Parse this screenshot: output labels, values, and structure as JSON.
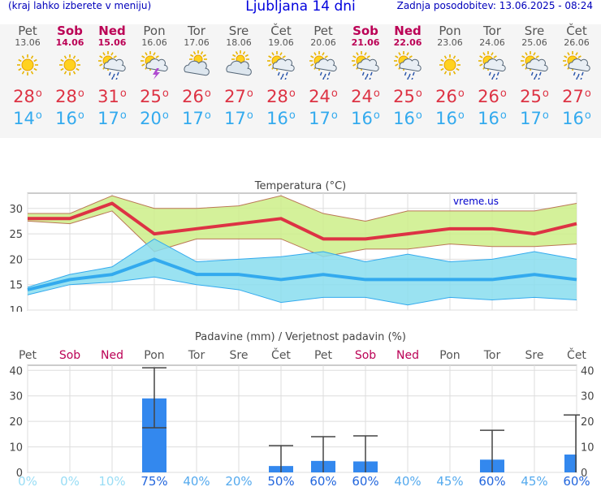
{
  "header": {
    "menu_hint": "(kraj lahko izberete v meniju)",
    "title": "Ljubljana 14 dni",
    "updated": "Zadnja posodobitev: 13.06.2025 - 08:24"
  },
  "days": [
    {
      "name": "Pet",
      "date": "13.06",
      "weekend": false,
      "icon": "sun-icon",
      "max": "28",
      "min": "14"
    },
    {
      "name": "Sob",
      "date": "14.06",
      "weekend": true,
      "icon": "sun-icon",
      "max": "28",
      "min": "16"
    },
    {
      "name": "Ned",
      "date": "15.06",
      "weekend": true,
      "icon": "sun-cloud-rain-icon",
      "max": "31",
      "min": "17"
    },
    {
      "name": "Pon",
      "date": "16.06",
      "weekend": false,
      "icon": "thunderstorm-icon",
      "max": "25",
      "min": "20"
    },
    {
      "name": "Tor",
      "date": "17.06",
      "weekend": false,
      "icon": "partly-cloudy-icon",
      "max": "26",
      "min": "17"
    },
    {
      "name": "Sre",
      "date": "18.06",
      "weekend": false,
      "icon": "partly-cloudy-icon",
      "max": "27",
      "min": "17"
    },
    {
      "name": "Čet",
      "date": "19.06",
      "weekend": false,
      "icon": "sun-cloud-rain-icon",
      "max": "28",
      "min": "16"
    },
    {
      "name": "Pet",
      "date": "20.06",
      "weekend": false,
      "icon": "sun-cloud-rain-icon",
      "max": "24",
      "min": "17"
    },
    {
      "name": "Sob",
      "date": "21.06",
      "weekend": true,
      "icon": "sun-cloud-rain-icon",
      "max": "24",
      "min": "16"
    },
    {
      "name": "Ned",
      "date": "22.06",
      "weekend": true,
      "icon": "sun-cloud-rain-icon",
      "max": "25",
      "min": "16"
    },
    {
      "name": "Pon",
      "date": "23.06",
      "weekend": false,
      "icon": "sun-icon",
      "max": "26",
      "min": "16"
    },
    {
      "name": "Tor",
      "date": "24.06",
      "weekend": false,
      "icon": "sun-cloud-rain-icon",
      "max": "26",
      "min": "16"
    },
    {
      "name": "Sre",
      "date": "25.06",
      "weekend": false,
      "icon": "sun-cloud-rain-icon",
      "max": "25",
      "min": "17"
    },
    {
      "name": "Čet",
      "date": "26.06",
      "weekend": false,
      "icon": "sun-cloud-rain-icon",
      "max": "27",
      "min": "16"
    }
  ],
  "colors": {
    "max": "#dd3344",
    "min": "#33aaee",
    "weekend": "#bb0055",
    "band_max": "#ccee88",
    "band_min": "#88ddee",
    "bar": "#3388ee"
  },
  "chart_data": [
    {
      "type": "line",
      "title": "Temperatura (°C)",
      "watermark": "vreme.us",
      "ylim": [
        10,
        33
      ],
      "yticks": [
        10,
        15,
        20,
        25,
        30
      ],
      "grid": true,
      "series": [
        {
          "role": "max",
          "values": [
            28,
            28,
            31,
            25,
            26,
            27,
            28,
            24,
            24,
            25,
            26,
            26,
            25,
            27
          ],
          "upper": [
            29,
            29,
            32.5,
            30,
            30,
            30.5,
            32.5,
            29,
            27.5,
            29.5,
            29.5,
            29.5,
            29.5,
            31
          ],
          "lower": [
            27.5,
            27,
            29.5,
            21.5,
            24,
            24,
            24,
            20.5,
            22,
            22,
            23,
            22.5,
            22.5,
            23
          ]
        },
        {
          "role": "min",
          "values": [
            14,
            16,
            17,
            20,
            17,
            17,
            16,
            17,
            16,
            16,
            16,
            16,
            17,
            16
          ],
          "upper": [
            14.5,
            17,
            18.5,
            24,
            19.5,
            20,
            20.5,
            21.5,
            19.5,
            21,
            19.5,
            20,
            21.5,
            20
          ],
          "lower": [
            13,
            15,
            15.5,
            16.5,
            15,
            14,
            11.5,
            12.5,
            12.5,
            11,
            12.5,
            12,
            12.5,
            12
          ]
        }
      ]
    },
    {
      "type": "bar",
      "title": "Padavine (mm) / Verjetnost padavin (%)",
      "categories": [
        "Pet",
        "Sob",
        "Ned",
        "Pon",
        "Tor",
        "Sre",
        "Čet",
        "Pet",
        "Sob",
        "Ned",
        "Pon",
        "Tor",
        "Sre",
        "Čet"
      ],
      "weekend": [
        false,
        true,
        true,
        false,
        false,
        false,
        false,
        false,
        true,
        true,
        false,
        false,
        false,
        false
      ],
      "ylim": [
        0,
        42
      ],
      "yticks": [
        0,
        10,
        20,
        30,
        40
      ],
      "values": [
        0,
        0,
        0,
        29,
        0,
        0,
        2.5,
        4.5,
        4.3,
        0,
        0,
        5,
        0,
        7
      ],
      "error_high": [
        0,
        0,
        0,
        41,
        0,
        0,
        10.5,
        14,
        14.3,
        0,
        0,
        16.5,
        0,
        22.5
      ],
      "error_low": [
        0,
        0,
        0,
        17.5,
        0,
        0,
        0,
        0,
        0,
        0,
        0,
        0,
        0,
        0
      ],
      "probability": [
        "0%",
        "0%",
        "10%",
        "75%",
        "40%",
        "20%",
        "50%",
        "60%",
        "60%",
        "40%",
        "45%",
        "60%",
        "45%",
        "60%"
      ]
    }
  ]
}
